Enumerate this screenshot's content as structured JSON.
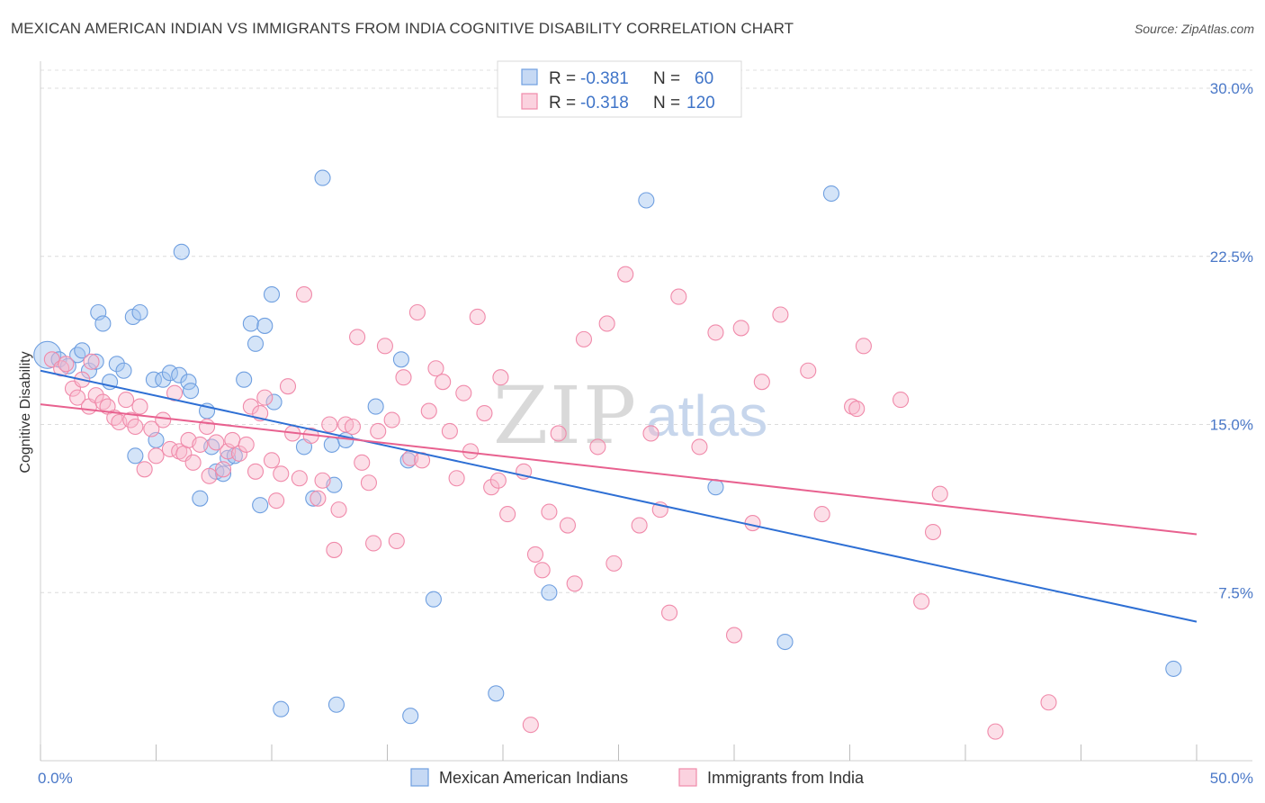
{
  "title": "MEXICAN AMERICAN INDIAN VS IMMIGRANTS FROM INDIA COGNITIVE DISABILITY CORRELATION CHART",
  "source": "Source: ZipAtlas.com",
  "watermark": {
    "zip": "ZIP",
    "atlas": "atlas"
  },
  "legend_top": [
    {
      "r_label": "R =",
      "r_value": "-0.381",
      "n_label": "N =",
      "n_value": "60",
      "color": "#6f9fe0"
    },
    {
      "r_label": "R =",
      "r_value": "-0.318",
      "n_label": "N =",
      "n_value": "120",
      "color": "#f08aaa"
    }
  ],
  "legend_bottom": [
    {
      "label": "Mexican American Indians",
      "color": "#6f9fe0"
    },
    {
      "label": "Immigrants from India",
      "color": "#f08aaa"
    }
  ],
  "chart_data": {
    "type": "scatter",
    "title": "MEXICAN AMERICAN INDIAN VS IMMIGRANTS FROM INDIA COGNITIVE DISABILITY CORRELATION CHART",
    "xlabel": "",
    "ylabel": "Cognitive Disability",
    "xlim": [
      0,
      50
    ],
    "ylim": [
      0,
      30
    ],
    "x_tick_labels": {
      "min": "0.0%",
      "max": "50.0%"
    },
    "y_ticks": [
      {
        "value": 7.5,
        "label": "7.5%"
      },
      {
        "value": 15.0,
        "label": "15.0%"
      },
      {
        "value": 22.5,
        "label": "22.5%"
      },
      {
        "value": 30.0,
        "label": "30.0%"
      }
    ],
    "series": [
      {
        "name": "Mexican American Indians",
        "color": "#6f9fe0",
        "line_color": "#2e6fd4",
        "trend": {
          "x0": 0,
          "y0": 17.4,
          "x1": 50,
          "y1": 6.2
        },
        "points": [
          [
            0.3,
            18.1,
            "big"
          ],
          [
            0.8,
            17.9
          ],
          [
            1.2,
            17.6
          ],
          [
            1.6,
            18.1
          ],
          [
            1.8,
            18.3
          ],
          [
            2.1,
            17.4
          ],
          [
            2.4,
            17.8
          ],
          [
            2.5,
            20.0
          ],
          [
            2.7,
            19.5
          ],
          [
            3.0,
            16.9
          ],
          [
            3.3,
            17.7
          ],
          [
            3.6,
            17.4
          ],
          [
            4.0,
            19.8
          ],
          [
            4.3,
            20.0
          ],
          [
            4.1,
            13.6
          ],
          [
            4.9,
            17.0
          ],
          [
            5.0,
            14.3
          ],
          [
            5.3,
            17.0
          ],
          [
            5.6,
            17.3
          ],
          [
            6.0,
            17.2
          ],
          [
            6.4,
            16.9
          ],
          [
            6.5,
            16.5
          ],
          [
            6.1,
            22.7
          ],
          [
            6.9,
            11.7
          ],
          [
            7.2,
            15.6
          ],
          [
            7.4,
            14.0
          ],
          [
            7.6,
            12.9
          ],
          [
            7.9,
            12.8
          ],
          [
            8.1,
            13.5
          ],
          [
            8.4,
            13.6
          ],
          [
            8.8,
            17.0
          ],
          [
            9.1,
            19.5
          ],
          [
            9.3,
            18.6
          ],
          [
            9.5,
            11.4
          ],
          [
            9.7,
            19.4
          ],
          [
            10.0,
            20.8
          ],
          [
            10.1,
            16.0
          ],
          [
            10.4,
            2.3
          ],
          [
            11.4,
            14.0
          ],
          [
            11.8,
            11.7
          ],
          [
            12.2,
            26.0
          ],
          [
            12.6,
            14.1
          ],
          [
            12.7,
            12.3
          ],
          [
            12.8,
            2.5
          ],
          [
            13.2,
            14.3
          ],
          [
            14.5,
            15.8
          ],
          [
            15.6,
            17.9
          ],
          [
            15.9,
            13.4
          ],
          [
            16.0,
            2.0
          ],
          [
            17.0,
            7.2
          ],
          [
            19.7,
            3.0
          ],
          [
            22.0,
            7.5
          ],
          [
            26.2,
            25.0
          ],
          [
            29.2,
            12.2
          ],
          [
            32.2,
            5.3
          ],
          [
            34.2,
            25.3
          ],
          [
            49.0,
            4.1
          ]
        ]
      },
      {
        "name": "Immigrants from India",
        "color": "#f08aaa",
        "line_color": "#e8618f",
        "trend": {
          "x0": 0,
          "y0": 15.9,
          "x1": 50,
          "y1": 10.1
        },
        "points": [
          [
            0.5,
            17.9
          ],
          [
            0.9,
            17.5
          ],
          [
            1.1,
            17.7
          ],
          [
            1.4,
            16.6
          ],
          [
            1.6,
            16.2
          ],
          [
            1.8,
            17.0
          ],
          [
            2.1,
            15.8
          ],
          [
            2.2,
            17.8
          ],
          [
            2.4,
            16.3
          ],
          [
            2.7,
            16.0
          ],
          [
            2.9,
            15.8
          ],
          [
            3.2,
            15.3
          ],
          [
            3.4,
            15.1
          ],
          [
            3.7,
            16.1
          ],
          [
            3.9,
            15.2
          ],
          [
            4.1,
            14.9
          ],
          [
            4.3,
            15.8
          ],
          [
            4.5,
            13.0
          ],
          [
            4.8,
            14.8
          ],
          [
            5.0,
            13.6
          ],
          [
            5.3,
            15.2
          ],
          [
            5.6,
            13.9
          ],
          [
            5.8,
            16.4
          ],
          [
            6.0,
            13.8
          ],
          [
            6.2,
            13.7
          ],
          [
            6.4,
            14.3
          ],
          [
            6.6,
            13.3
          ],
          [
            6.9,
            14.1
          ],
          [
            7.2,
            14.9
          ],
          [
            7.3,
            12.7
          ],
          [
            7.6,
            14.2
          ],
          [
            7.9,
            13.0
          ],
          [
            8.1,
            13.8
          ],
          [
            8.3,
            14.3
          ],
          [
            8.6,
            13.7
          ],
          [
            8.9,
            14.1
          ],
          [
            9.1,
            15.8
          ],
          [
            9.3,
            12.9
          ],
          [
            9.5,
            15.5
          ],
          [
            9.7,
            16.2
          ],
          [
            10.0,
            13.4
          ],
          [
            10.2,
            11.6
          ],
          [
            10.4,
            12.8
          ],
          [
            10.7,
            16.7
          ],
          [
            10.9,
            14.6
          ],
          [
            11.2,
            12.6
          ],
          [
            11.4,
            20.8
          ],
          [
            11.7,
            14.5
          ],
          [
            12.0,
            11.7
          ],
          [
            12.2,
            12.5
          ],
          [
            12.5,
            15.0
          ],
          [
            12.7,
            9.4
          ],
          [
            12.9,
            11.2
          ],
          [
            13.2,
            15.0
          ],
          [
            13.5,
            14.9
          ],
          [
            13.7,
            18.9
          ],
          [
            13.9,
            13.3
          ],
          [
            14.2,
            12.4
          ],
          [
            14.4,
            9.7
          ],
          [
            14.6,
            14.7
          ],
          [
            14.9,
            18.5
          ],
          [
            15.2,
            15.2
          ],
          [
            15.4,
            9.8
          ],
          [
            15.7,
            17.1
          ],
          [
            16.0,
            13.5
          ],
          [
            16.3,
            20.0
          ],
          [
            16.5,
            13.4
          ],
          [
            16.8,
            15.6
          ],
          [
            17.1,
            17.5
          ],
          [
            17.4,
            16.9
          ],
          [
            17.7,
            14.7
          ],
          [
            18.0,
            12.6
          ],
          [
            18.3,
            16.4
          ],
          [
            18.6,
            13.8
          ],
          [
            18.9,
            19.8
          ],
          [
            19.2,
            15.5
          ],
          [
            19.5,
            12.2
          ],
          [
            19.8,
            12.5
          ],
          [
            19.9,
            17.1
          ],
          [
            20.2,
            11.0
          ],
          [
            20.9,
            12.9
          ],
          [
            21.2,
            1.6
          ],
          [
            21.4,
            9.2
          ],
          [
            21.7,
            8.5
          ],
          [
            22.0,
            11.1
          ],
          [
            22.4,
            14.6
          ],
          [
            22.8,
            10.5
          ],
          [
            23.1,
            7.9
          ],
          [
            23.5,
            18.8
          ],
          [
            24.1,
            14.0
          ],
          [
            24.5,
            19.5
          ],
          [
            24.8,
            8.8
          ],
          [
            25.3,
            21.7
          ],
          [
            25.9,
            10.5
          ],
          [
            26.4,
            14.6
          ],
          [
            26.8,
            11.2
          ],
          [
            27.2,
            6.6
          ],
          [
            27.6,
            20.7
          ],
          [
            28.5,
            14.0
          ],
          [
            29.2,
            19.1
          ],
          [
            30.0,
            5.6
          ],
          [
            30.3,
            19.3
          ],
          [
            30.8,
            10.6
          ],
          [
            31.2,
            16.9
          ],
          [
            32.0,
            19.9
          ],
          [
            33.2,
            17.4
          ],
          [
            33.8,
            11.0
          ],
          [
            35.1,
            15.8
          ],
          [
            35.3,
            15.7
          ],
          [
            35.6,
            18.5
          ],
          [
            37.2,
            16.1
          ],
          [
            38.1,
            7.1
          ],
          [
            38.6,
            10.2
          ],
          [
            38.9,
            11.9
          ],
          [
            41.3,
            1.3
          ],
          [
            43.6,
            2.6
          ]
        ]
      }
    ]
  }
}
